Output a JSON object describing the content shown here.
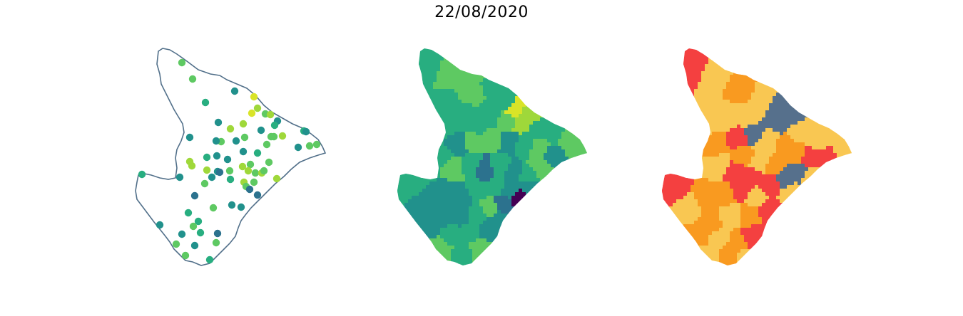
{
  "title": "22/08/2020",
  "colors": {
    "outline": "#52708a",
    "viridis": [
      "#440154",
      "#2c728e",
      "#21918c",
      "#28ae80",
      "#5ec962",
      "#9fd83a",
      "#d9e428",
      "#fde725"
    ],
    "risk": {
      "red": "#f44040",
      "orange": "#f99a20",
      "yellow": "#f9c752",
      "blue": "#56708c"
    }
  },
  "panels": [
    {
      "name": "station-points-map",
      "kind": "points"
    },
    {
      "name": "municipality-choropleth-map",
      "kind": "choropleth",
      "palette": "viridis"
    },
    {
      "name": "municipality-risk-map",
      "kind": "categorical",
      "palette": "risk"
    }
  ]
}
